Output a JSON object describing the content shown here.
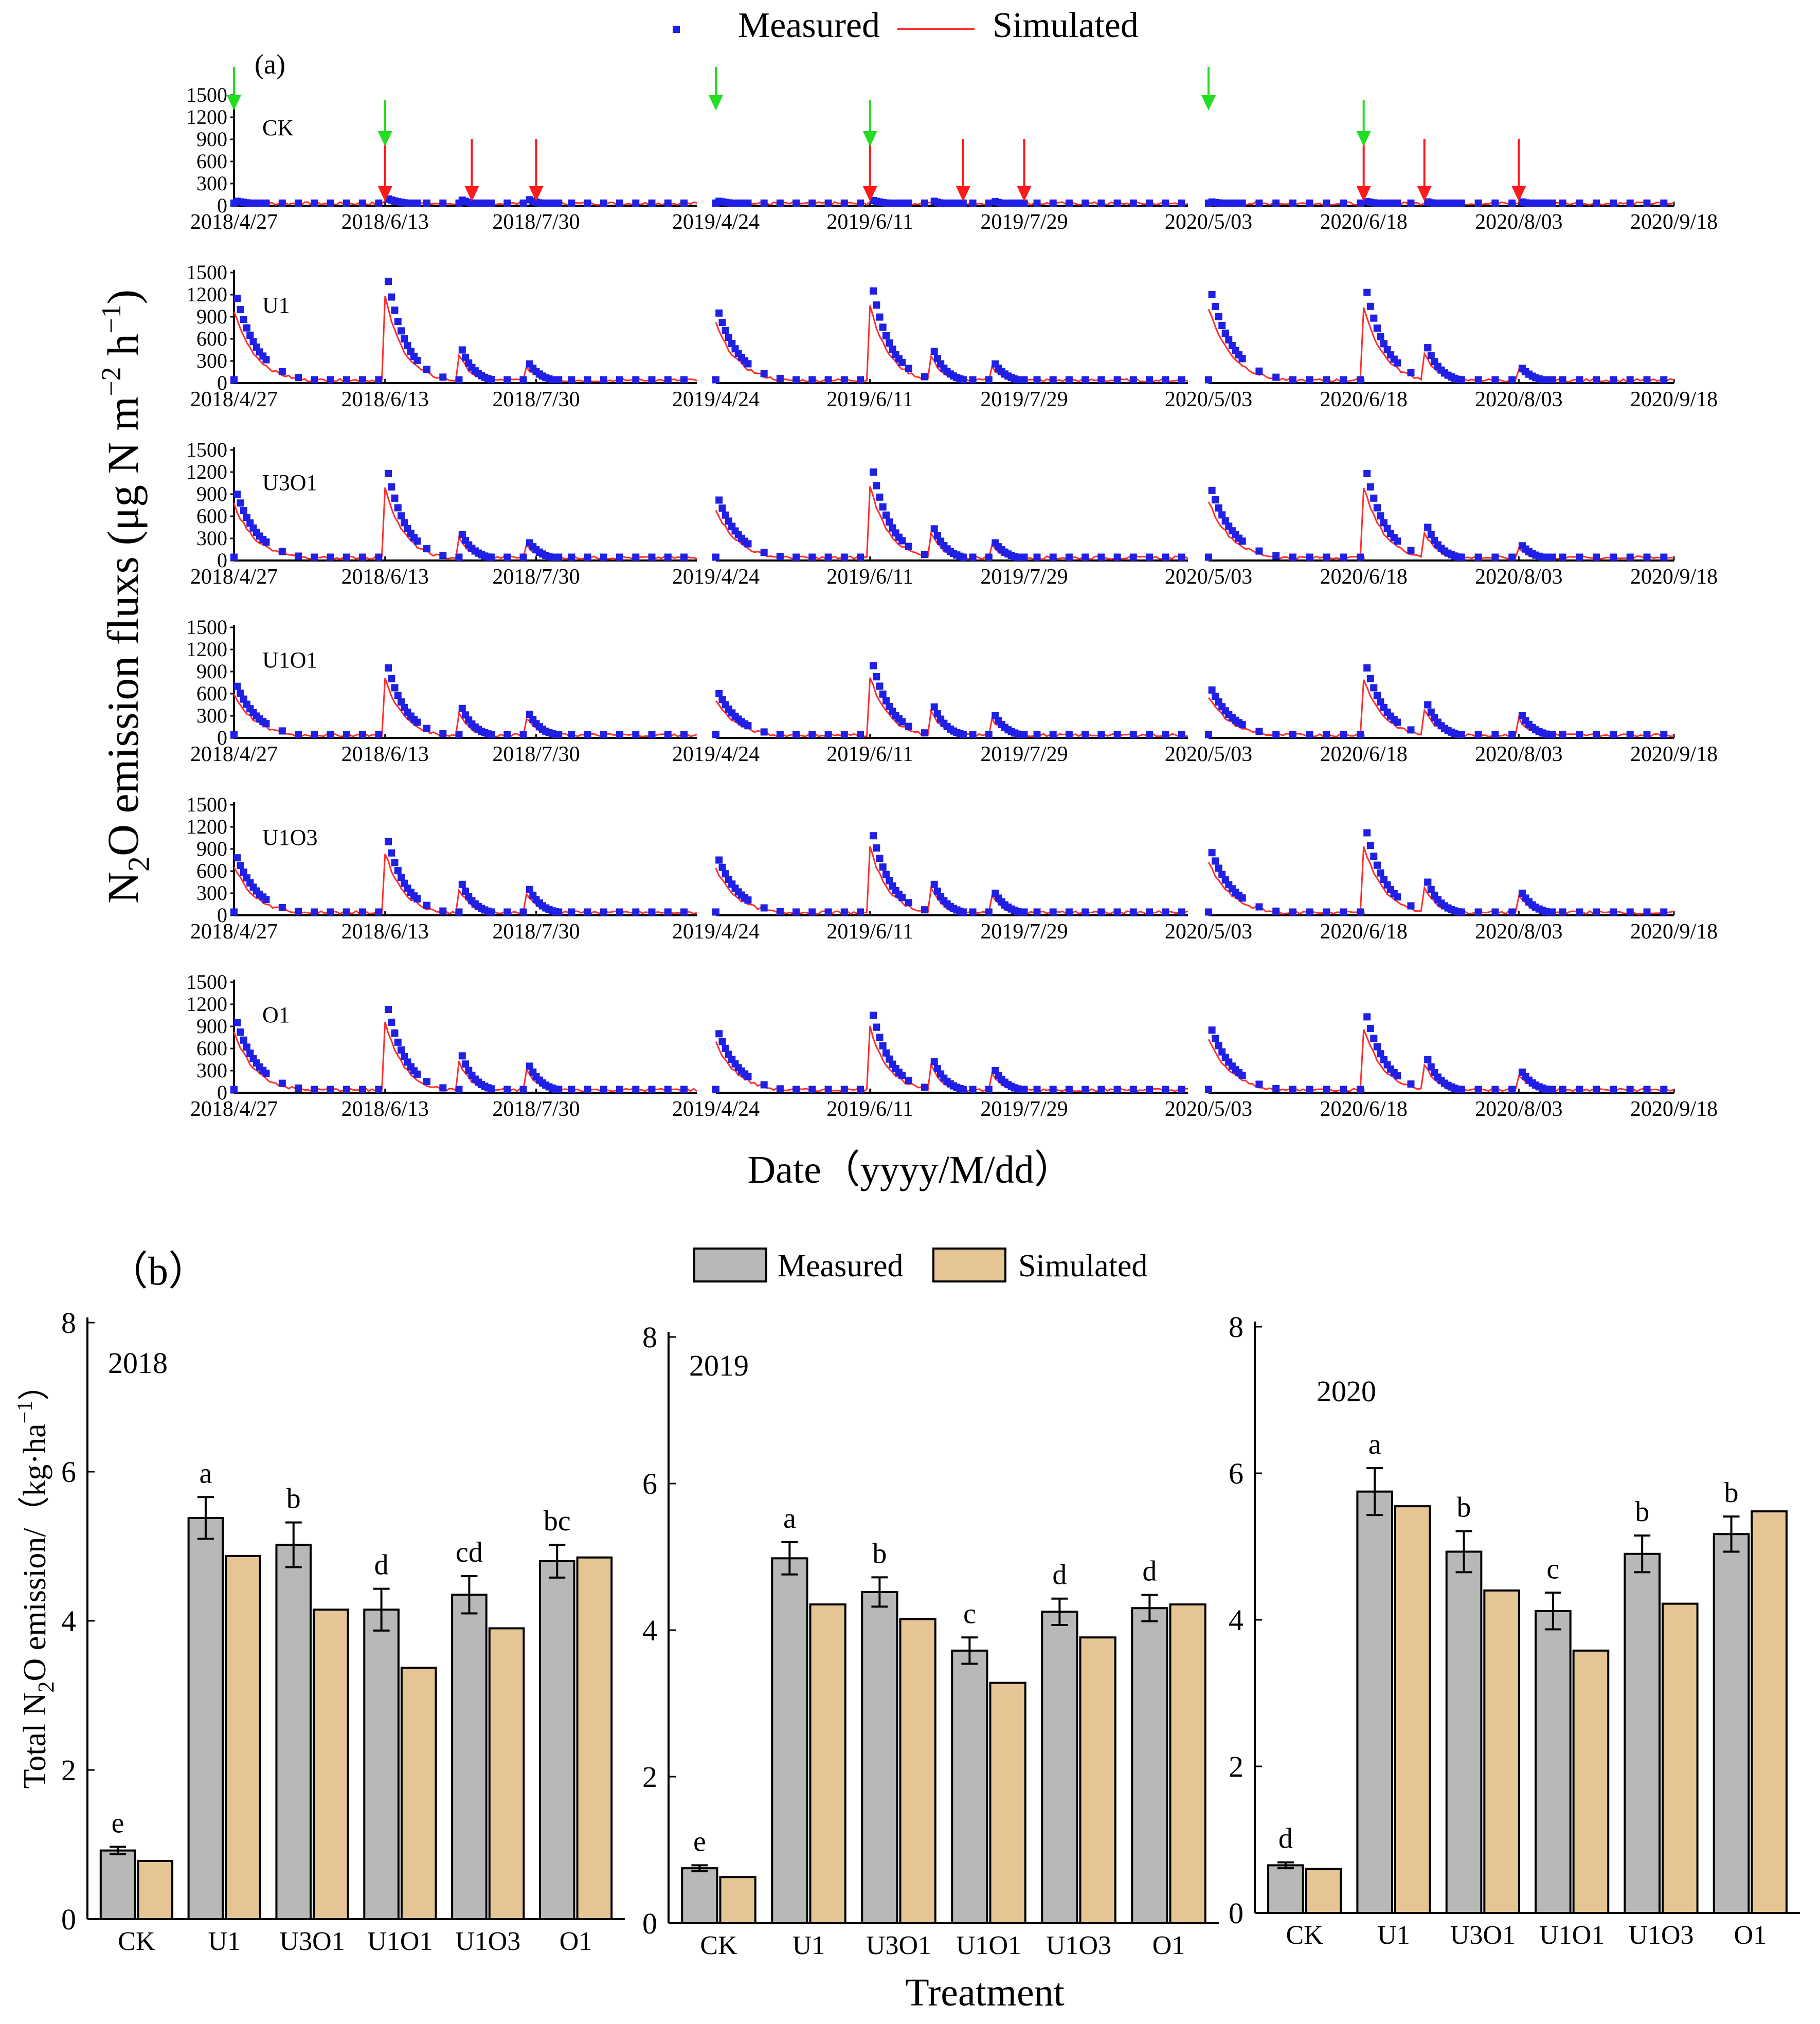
{
  "chart_data": [
    {
      "id": "a",
      "panel_label": "(a)",
      "type": "line",
      "ylabel_main": "N",
      "ylabel_sub": "2",
      "ylabel_rest": "O emission fluxs (μg N m",
      "ylabel_unit_exp1": "−2",
      "ylabel_unit_mid": " h",
      "ylabel_unit_exp2": "−1",
      "ylabel_close": ")",
      "xlabel": "Date（yyyy/M/dd）",
      "legend": {
        "measured": "Measured",
        "simulated": "Simulated"
      },
      "ylim": [
        0,
        1500
      ],
      "yticks": [
        "0",
        "300",
        "600",
        "900",
        "1200",
        "1500"
      ],
      "colors": {
        "measured": "#1f1fe6",
        "simulated": "#ff2d2d",
        "arrow_green": "#22dd22",
        "arrow_red": "#ff1a1a"
      },
      "segments": [
        {
          "year": 2018,
          "start": "2018/4/27",
          "end": "2018/9/18",
          "ticks": [
            "2018/4/27",
            "2018/6/13",
            "2018/7/30"
          ]
        },
        {
          "year": 2019,
          "start": "2019/4/24",
          "end": "2019/9/18",
          "ticks": [
            "2019/4/24",
            "2019/6/11",
            "2019/7/29"
          ]
        },
        {
          "year": 2020,
          "start": "2020/5/03",
          "end": "2020/9/18",
          "ticks": [
            "2020/5/03",
            "2020/6/18",
            "2020/8/03",
            "2020/9/18"
          ]
        }
      ],
      "arrows": {
        "green": [
          "2018/4/27",
          "2018/6/13",
          "2019/4/24",
          "2019/6/11",
          "2020/5/03",
          "2020/6/18"
        ],
        "red": [
          "2018/6/13",
          "2018/7/10",
          "2018/7/30",
          "2019/6/11",
          "2019/7/10",
          "2019/7/29",
          "2020/6/18",
          "2020/7/06",
          "2020/8/03"
        ]
      },
      "treatments": [
        {
          "name": "CK",
          "peaks": [
            [
              [
                0,
                60
              ],
              [
                47,
                90
              ],
              [
                70,
                75
              ],
              [
                91,
                80
              ]
            ],
            [
              [
                0,
                60
              ],
              [
                48,
                70
              ],
              [
                67,
                60
              ],
              [
                86,
                55
              ]
            ],
            [
              [
                0,
                50
              ],
              [
                46,
                55
              ],
              [
                64,
                50
              ],
              [
                92,
                50
              ]
            ]
          ]
        },
        {
          "name": "U1",
          "peaks": [
            [
              [
                0,
                1150
              ],
              [
                47,
                1380
              ],
              [
                70,
                450
              ],
              [
                91,
                260
              ]
            ],
            [
              [
                0,
                950
              ],
              [
                48,
                1250
              ],
              [
                67,
                430
              ],
              [
                86,
                260
              ]
            ],
            [
              [
                0,
                1200
              ],
              [
                46,
                1230
              ],
              [
                64,
                480
              ],
              [
                92,
                200
              ]
            ]
          ]
        },
        {
          "name": "U3O1",
          "peaks": [
            [
              [
                0,
                900
              ],
              [
                47,
                1180
              ],
              [
                70,
                350
              ],
              [
                91,
                240
              ]
            ],
            [
              [
                0,
                820
              ],
              [
                48,
                1200
              ],
              [
                67,
                430
              ],
              [
                86,
                240
              ]
            ],
            [
              [
                0,
                950
              ],
              [
                46,
                1180
              ],
              [
                64,
                450
              ],
              [
                92,
                200
              ]
            ]
          ]
        },
        {
          "name": "U1O1",
          "peaks": [
            [
              [
                0,
                700
              ],
              [
                47,
                950
              ],
              [
                70,
                400
              ],
              [
                91,
                320
              ]
            ],
            [
              [
                0,
                600
              ],
              [
                48,
                980
              ],
              [
                67,
                420
              ],
              [
                86,
                300
              ]
            ],
            [
              [
                0,
                650
              ],
              [
                46,
                950
              ],
              [
                64,
                450
              ],
              [
                92,
                300
              ]
            ]
          ]
        },
        {
          "name": "U1O3",
          "peaks": [
            [
              [
                0,
                780
              ],
              [
                47,
                1000
              ],
              [
                70,
                420
              ],
              [
                91,
                350
              ]
            ],
            [
              [
                0,
                750
              ],
              [
                48,
                1080
              ],
              [
                67,
                420
              ],
              [
                86,
                300
              ]
            ],
            [
              [
                0,
                850
              ],
              [
                46,
                1120
              ],
              [
                64,
                450
              ],
              [
                92,
                300
              ]
            ]
          ]
        },
        {
          "name": "O1",
          "peaks": [
            [
              [
                0,
                950
              ],
              [
                47,
                1130
              ],
              [
                70,
                500
              ],
              [
                91,
                360
              ]
            ],
            [
              [
                0,
                800
              ],
              [
                48,
                1050
              ],
              [
                67,
                420
              ],
              [
                86,
                300
              ]
            ],
            [
              [
                0,
                850
              ],
              [
                46,
                1030
              ],
              [
                64,
                450
              ],
              [
                92,
                280
              ]
            ]
          ]
        }
      ]
    },
    {
      "id": "b",
      "panel_label": "（b）",
      "type": "bar",
      "ylabel_main": "Total N",
      "ylabel_sub": "2",
      "ylabel_rest": "O emission/（kg·ha",
      "ylabel_exp": "−1",
      "ylabel_close": "）",
      "xlabel": "Treatment",
      "legend": {
        "measured": "Measured",
        "simulated": "Simulated"
      },
      "colors": {
        "measured": "#b8b8b8",
        "simulated": "#e6c595"
      },
      "ylim": [
        0,
        8
      ],
      "yticks": [
        "0",
        "2",
        "4",
        "6",
        "8"
      ],
      "categories": [
        "CK",
        "U1",
        "U3O1",
        "U1O1",
        "U1O3",
        "O1"
      ],
      "years": [
        {
          "year": "2018",
          "measured": [
            0.92,
            5.38,
            5.02,
            4.15,
            4.35,
            4.8
          ],
          "errors": [
            0.05,
            0.28,
            0.3,
            0.28,
            0.25,
            0.22
          ],
          "simulated": [
            0.78,
            4.87,
            4.15,
            3.37,
            3.9,
            4.85
          ],
          "letters": [
            "e",
            "a",
            "b",
            "d",
            "cd",
            "bc"
          ]
        },
        {
          "year": "2019",
          "measured": [
            0.75,
            4.98,
            4.52,
            3.72,
            4.25,
            4.3
          ],
          "errors": [
            0.04,
            0.22,
            0.2,
            0.18,
            0.18,
            0.18
          ],
          "simulated": [
            0.63,
            4.35,
            4.15,
            3.28,
            3.9,
            4.35
          ],
          "letters": [
            "e",
            "a",
            "b",
            "c",
            "d",
            "d"
          ]
        },
        {
          "year": "2020",
          "measured": [
            0.65,
            5.75,
            4.93,
            4.12,
            4.9,
            5.17
          ],
          "errors": [
            0.04,
            0.32,
            0.28,
            0.25,
            0.25,
            0.24
          ],
          "simulated": [
            0.6,
            5.55,
            4.4,
            3.58,
            4.22,
            5.48
          ],
          "letters": [
            "d",
            "a",
            "b",
            "c",
            "b",
            "b"
          ]
        }
      ]
    }
  ]
}
